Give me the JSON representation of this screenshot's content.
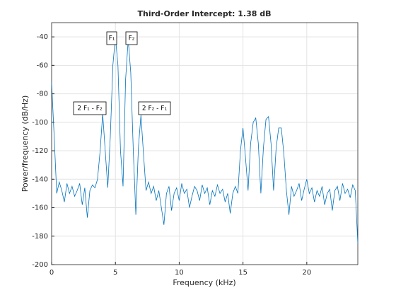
{
  "chart_data": {
    "type": "line",
    "title": "Third-Order Intercept:   1.38 dB",
    "xlabel": "Frequency (kHz)",
    "ylabel": "Power/frequency (dB/Hz)",
    "xlim": [
      0,
      24
    ],
    "ylim": [
      -200,
      -30
    ],
    "xticks": [
      0,
      5,
      10,
      15,
      20
    ],
    "yticks": [
      -200,
      -180,
      -160,
      -140,
      -120,
      -100,
      -80,
      -60,
      -40
    ],
    "grid": true,
    "annotations": [
      "F₁",
      "F₂",
      "2 F₁ - F₂",
      "2 F₂ - F₁"
    ],
    "x": [
      0,
      0.2,
      0.4,
      0.6,
      0.8,
      1,
      1.2,
      1.4,
      1.6,
      1.8,
      2,
      2.2,
      2.4,
      2.6,
      2.8,
      3,
      3.2,
      3.4,
      3.6,
      3.8,
      4,
      4.2,
      4.4,
      4.6,
      4.8,
      5,
      5.2,
      5.4,
      5.6,
      5.8,
      6,
      6.2,
      6.4,
      6.6,
      6.8,
      7,
      7.2,
      7.4,
      7.6,
      7.8,
      8,
      8.2,
      8.4,
      8.6,
      8.8,
      9,
      9.2,
      9.4,
      9.6,
      9.8,
      10,
      10.2,
      10.4,
      10.6,
      10.8,
      11,
      11.2,
      11.4,
      11.6,
      11.8,
      12,
      12.2,
      12.4,
      12.6,
      12.8,
      13,
      13.2,
      13.4,
      13.6,
      13.8,
      14,
      14.2,
      14.4,
      14.6,
      14.8,
      15,
      15.2,
      15.4,
      15.6,
      15.8,
      16,
      16.2,
      16.4,
      16.6,
      16.8,
      17,
      17.2,
      17.4,
      17.6,
      17.8,
      18,
      18.2,
      18.4,
      18.6,
      18.8,
      19,
      19.2,
      19.4,
      19.6,
      19.8,
      20,
      20.2,
      20.4,
      20.6,
      20.8,
      21,
      21.2,
      21.4,
      21.6,
      21.8,
      22,
      22.2,
      22.4,
      22.6,
      22.8,
      23,
      23.2,
      23.4,
      23.6,
      23.8,
      24
    ],
    "series": [
      {
        "color": "#0072bd",
        "values": [
          -72,
          -110,
          -150,
          -142,
          -148,
          -156,
          -143,
          -150,
          -145,
          -152,
          -148,
          -143,
          -158,
          -146,
          -167,
          -148,
          -144,
          -146,
          -140,
          -120,
          -94,
          -120,
          -146,
          -110,
          -60,
          -40,
          -60,
          -120,
          -145,
          -70,
          -42,
          -65,
          -120,
          -165,
          -118,
          -95,
          -122,
          -148,
          -142,
          -150,
          -145,
          -155,
          -148,
          -160,
          -172,
          -150,
          -145,
          -162,
          -150,
          -146,
          -155,
          -143,
          -150,
          -147,
          -160,
          -152,
          -145,
          -148,
          -155,
          -144,
          -150,
          -146,
          -158,
          -148,
          -152,
          -144,
          -150,
          -147,
          -156,
          -150,
          -164,
          -150,
          -145,
          -150,
          -120,
          -104,
          -125,
          -148,
          -115,
          -100,
          -97,
          -115,
          -150,
          -118,
          -98,
          -96,
          -115,
          -148,
          -118,
          -104,
          -104,
          -122,
          -148,
          -165,
          -145,
          -152,
          -148,
          -143,
          -155,
          -147,
          -140,
          -150,
          -146,
          -156,
          -148,
          -152,
          -145,
          -158,
          -150,
          -147,
          -162,
          -148,
          -145,
          -155,
          -143,
          -150,
          -147,
          -153,
          -144,
          -148,
          -185
        ]
      }
    ]
  }
}
